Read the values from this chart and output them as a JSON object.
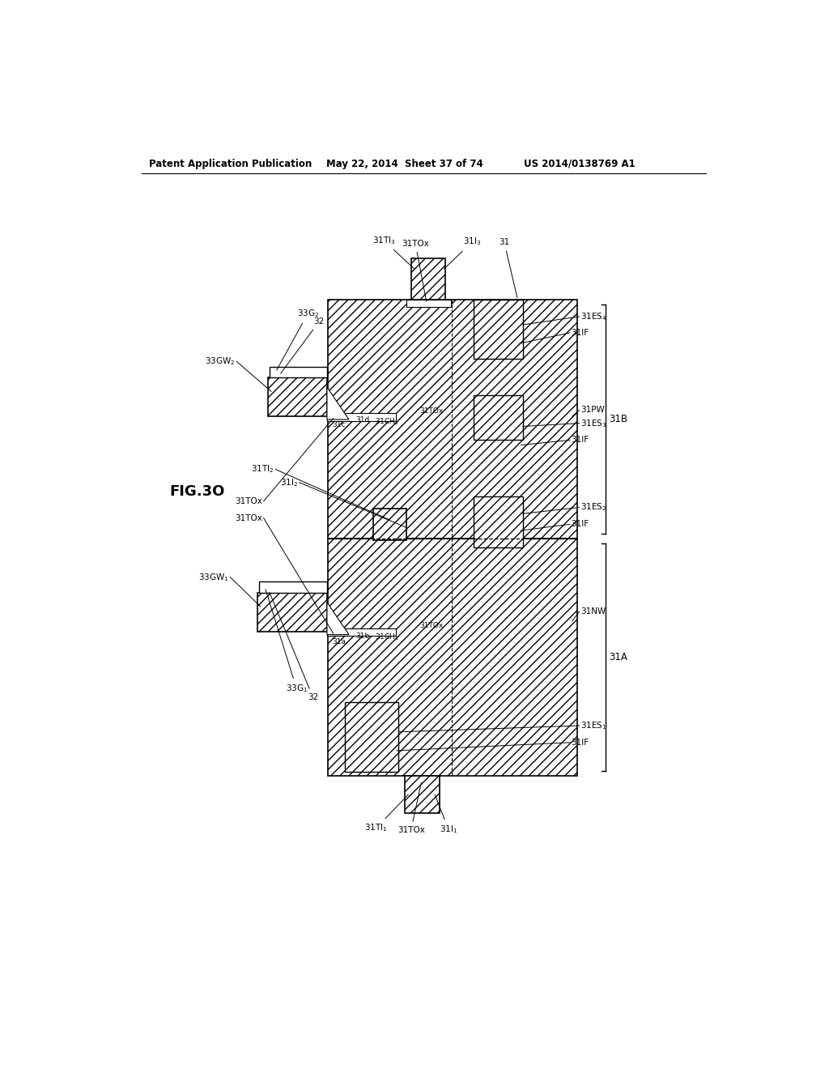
{
  "header_left": "Patent Application Publication",
  "header_mid": "May 22, 2014  Sheet 37 of 74",
  "header_right": "US 2014/0138769 A1",
  "fig_label": "FIG.3O",
  "bg_color": "#ffffff"
}
